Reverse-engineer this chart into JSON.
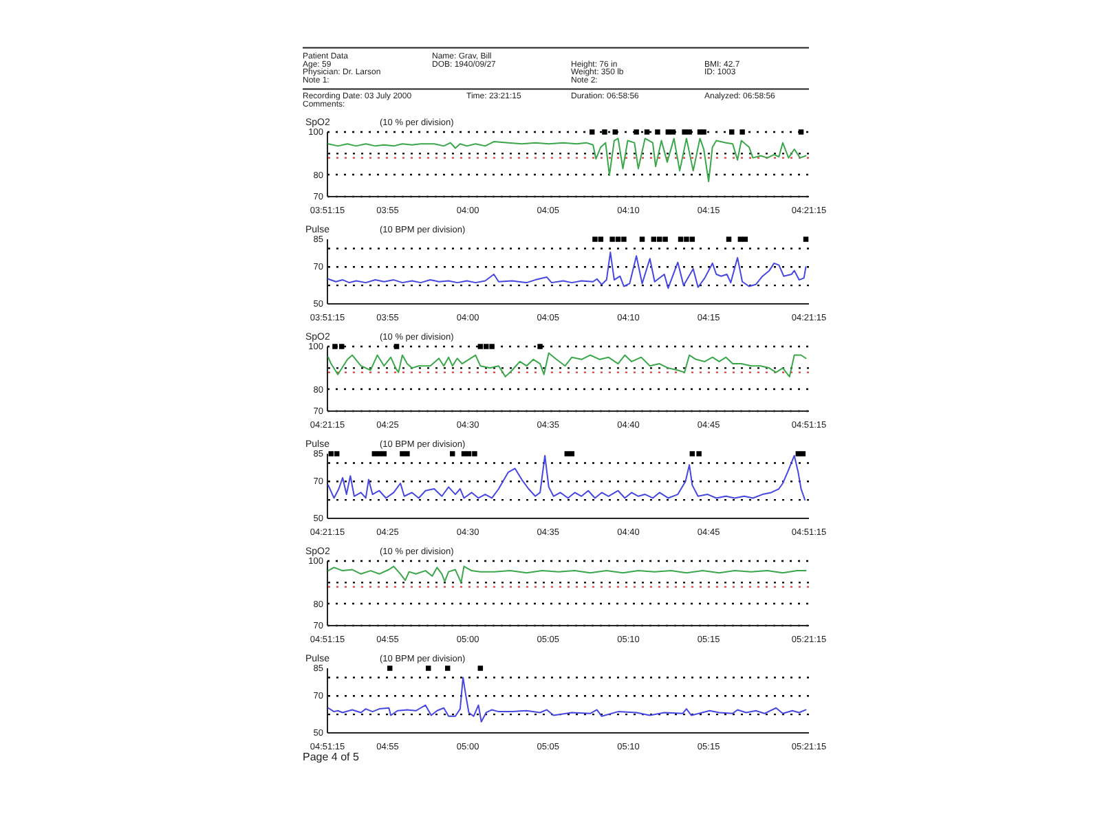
{
  "chart_data": [
    {
      "type": "other",
      "annotations": [
        "Patient Data",
        "Name: Grav, Bill",
        "Age: 59",
        "DOB: 1940/09/27",
        "Height: 76 in",
        "BMI: 42.7",
        "Physician: Dr. Larson",
        "Weight: 350 lb",
        "ID: 1003",
        "Note 1:",
        "Note 2:",
        "Recording Date: 03 July 2000",
        "Time: 23:21:15",
        "Duration: 06:58:56",
        "Analyzed: 06:58:56",
        "Comments:"
      ]
    },
    {
      "type": "line",
      "ylabel": "SpO2",
      "subtitle": "(10 % per division)",
      "xlim": [
        3.8542,
        4.3542
      ],
      "ylim": [
        70,
        100
      ],
      "grid": "y",
      "xticks": [
        {
          "value": 3.8542,
          "label": "03:51:15"
        },
        {
          "value": 3.9167,
          "label": "03:55"
        },
        {
          "value": 4,
          "label": "04:00"
        },
        {
          "value": 4.0833,
          "label": "04:05"
        },
        {
          "value": 4.1667,
          "label": "04:10"
        },
        {
          "value": 4.25,
          "label": "04:15"
        },
        {
          "value": 4.3542,
          "label": "04:21:15"
        }
      ],
      "yticks": [
        100,
        80,
        70
      ],
      "ref_lines": [
        {
          "axis": "y",
          "value": 90,
          "color": "#000000",
          "line_style": "dotted"
        },
        {
          "axis": "y",
          "value": 88,
          "color": "#e23b3b",
          "line_style": "dotted"
        }
      ],
      "series": [
        {
          "color": "#3aa64a",
          "x": [
            3.855,
            3.865,
            3.875,
            3.884,
            3.894,
            3.904,
            3.913,
            3.923,
            3.932,
            3.942,
            3.951,
            3.965,
            3.975,
            3.982,
            3.987,
            3.992,
            3.999,
            4.008,
            4.018,
            4.027,
            4.042,
            4.056,
            4.07,
            4.084,
            4.099,
            4.113,
            4.123,
            4.13,
            4.133,
            4.138,
            4.143,
            4.147,
            4.152,
            4.156,
            4.161,
            4.166,
            4.173,
            4.177,
            4.184,
            4.192,
            4.195,
            4.201,
            4.207,
            4.214,
            4.22,
            4.227,
            4.234,
            4.241,
            4.245,
            4.25,
            4.254,
            4.258,
            4.268,
            4.275,
            4.28,
            4.284,
            4.292,
            4.296,
            4.304,
            4.311,
            4.318,
            4.323,
            4.327,
            4.333,
            4.339,
            4.345,
            4.351
          ],
          "values": [
            94.5,
            93.5,
            94.5,
            93.5,
            94.5,
            93.5,
            94,
            93.5,
            94.5,
            94,
            94.5,
            94.5,
            93.5,
            95,
            92.5,
            94.5,
            93.5,
            94.5,
            93.5,
            95.5,
            95,
            94.5,
            95,
            94.5,
            95,
            94.5,
            95,
            94,
            87.5,
            93,
            95,
            80,
            96,
            97,
            83,
            96,
            95,
            83,
            97,
            95,
            84,
            96,
            86,
            97,
            82,
            97,
            82,
            97,
            92,
            77,
            93,
            96,
            95,
            94.5,
            87,
            96,
            93,
            88,
            89,
            88,
            89.5,
            88.5,
            95,
            88,
            92,
            88,
            89
          ]
        },
        {
          "type": "scatter",
          "marker": "square",
          "color": "#000000",
          "x": [
            4.129,
            4.142,
            4.153,
            4.175,
            4.186,
            4.197,
            4.208,
            4.213,
            4.225,
            4.23,
            4.241,
            4.245,
            4.274,
            4.285,
            4.346
          ],
          "values": [
            100,
            100,
            100,
            100,
            100,
            100,
            100,
            100,
            100,
            100,
            100,
            100,
            100,
            100,
            100
          ]
        }
      ]
    },
    {
      "type": "line",
      "ylabel": "Pulse",
      "subtitle": "(10 BPM per division)",
      "xlim": [
        3.8542,
        4.3542
      ],
      "ylim": [
        50,
        85
      ],
      "xticks": [
        {
          "value": 3.8542,
          "label": "03:51:15"
        },
        {
          "value": 3.9167,
          "label": "03:55"
        },
        {
          "value": 4,
          "label": "04:00"
        },
        {
          "value": 4.0833,
          "label": "04:05"
        },
        {
          "value": 4.1667,
          "label": "04:10"
        },
        {
          "value": 4.25,
          "label": "04:15"
        },
        {
          "value": 4.3542,
          "label": "04:21:15"
        }
      ],
      "yticks": [
        85,
        70,
        50
      ],
      "ref_lines": [
        {
          "axis": "y",
          "value": 80,
          "color": "#000000",
          "line_style": "dotted"
        },
        {
          "axis": "y",
          "value": 70,
          "color": "#000000",
          "line_style": "dotted"
        },
        {
          "axis": "y",
          "value": 60,
          "color": "#000000",
          "line_style": "dotted"
        }
      ],
      "series": [
        {
          "color": "#4646e0",
          "x": [
            3.855,
            3.863,
            3.87,
            3.877,
            3.884,
            3.894,
            3.904,
            3.913,
            3.923,
            3.932,
            3.942,
            3.951,
            3.961,
            3.97,
            3.98,
            3.989,
            3.999,
            4.008,
            4.018,
            4.027,
            4.032,
            4.046,
            4.061,
            4.07,
            4.082,
            4.087,
            4.099,
            4.108,
            4.118,
            4.13,
            4.134,
            4.139,
            4.144,
            4.148,
            4.152,
            4.158,
            4.162,
            4.168,
            4.175,
            4.181,
            4.189,
            4.194,
            4.204,
            4.208,
            4.218,
            4.224,
            4.234,
            4.239,
            4.246,
            4.254,
            4.258,
            4.263,
            4.269,
            4.273,
            4.28,
            4.285,
            4.292,
            4.299,
            4.306,
            4.313,
            4.318,
            4.323,
            4.328,
            4.336,
            4.339,
            4.344,
            4.349,
            4.351
          ],
          "values": [
            63.5,
            62,
            63,
            61.5,
            62.5,
            61.5,
            63,
            62,
            63,
            61.5,
            62.5,
            61.5,
            63,
            62,
            62.5,
            61.5,
            62.5,
            61.5,
            62.5,
            66,
            62,
            62.5,
            61.5,
            63,
            64.5,
            61.5,
            62.5,
            61.5,
            62.5,
            62,
            63.5,
            60.5,
            63,
            78,
            63,
            65,
            59.5,
            61,
            76,
            61,
            74.5,
            62,
            66,
            58.5,
            72.5,
            60,
            69,
            59,
            64,
            72,
            66,
            65,
            66,
            61.5,
            75,
            62,
            59.5,
            60.5,
            65,
            68,
            72,
            71,
            65,
            66,
            68,
            63,
            64,
            70
          ]
        },
        {
          "type": "scatter",
          "marker": "square",
          "color": "#000000",
          "x": [
            4.132,
            4.138,
            4.15,
            4.156,
            4.162,
            4.181,
            4.193,
            4.199,
            4.205,
            4.221,
            4.227,
            4.233,
            4.271,
            4.283,
            4.288,
            4.351
          ],
          "values": [
            85,
            85,
            85,
            85,
            85,
            85,
            85,
            85,
            85,
            85,
            85,
            85,
            85,
            85,
            85,
            85
          ]
        }
      ]
    },
    {
      "type": "line",
      "ylabel": "SpO2",
      "subtitle": "(10 % per division)",
      "xlim": [
        4.3542,
        4.8542
      ],
      "ylim": [
        70,
        100
      ],
      "grid": "y",
      "xticks": [
        {
          "value": 4.3542,
          "label": "04:21:15"
        },
        {
          "value": 4.4167,
          "label": "04:25"
        },
        {
          "value": 4.5,
          "label": "04:30"
        },
        {
          "value": 4.5833,
          "label": "04:35"
        },
        {
          "value": 4.6667,
          "label": "04:40"
        },
        {
          "value": 4.75,
          "label": "04:45"
        },
        {
          "value": 4.8542,
          "label": "04:51:15"
        }
      ],
      "yticks": [
        100,
        80,
        70
      ],
      "ref_lines": [
        {
          "axis": "y",
          "value": 90,
          "color": "#000000",
          "line_style": "dotted"
        },
        {
          "axis": "y",
          "value": 88,
          "color": "#e23b3b",
          "line_style": "dotted"
        }
      ],
      "series": [
        {
          "color": "#3aa64a",
          "x": [
            4.355,
            4.358,
            4.365,
            4.375,
            4.38,
            4.389,
            4.399,
            4.406,
            4.413,
            4.42,
            4.425,
            4.428,
            4.432,
            4.437,
            4.442,
            4.449,
            4.461,
            4.47,
            4.475,
            4.48,
            4.484,
            4.489,
            4.494,
            4.501,
            4.508,
            4.513,
            4.523,
            4.532,
            4.539,
            4.546,
            4.554,
            4.561,
            4.568,
            4.575,
            4.579,
            4.584,
            4.592,
            4.601,
            4.608,
            4.618,
            4.627,
            4.637,
            4.646,
            4.656,
            4.663,
            4.67,
            4.68,
            4.689,
            4.699,
            4.708,
            4.718,
            4.725,
            4.73,
            4.737,
            4.746,
            4.754,
            4.761,
            4.768,
            4.775,
            4.784,
            4.794,
            4.804,
            4.813,
            4.82,
            4.827,
            4.834,
            4.839,
            4.846,
            4.851
          ],
          "values": [
            95,
            92,
            87,
            94,
            96,
            91,
            89,
            96,
            91,
            95,
            90,
            88,
            96,
            92,
            90,
            91,
            91,
            94.5,
            91,
            95,
            91,
            94.5,
            92,
            94,
            96,
            91,
            90,
            91,
            86,
            89,
            93,
            91,
            94,
            92,
            87,
            97,
            94,
            91,
            95,
            94,
            96,
            94,
            95,
            92,
            96,
            93,
            95,
            91,
            92,
            90,
            89,
            88,
            96,
            94,
            93,
            95,
            93,
            95,
            92,
            92,
            91,
            91,
            90,
            88,
            90,
            86,
            96,
            96,
            94.5
          ]
        },
        {
          "type": "scatter",
          "marker": "square",
          "color": "#000000",
          "x": [
            4.362,
            4.369,
            4.426,
            4.513,
            4.519,
            4.525,
            4.575
          ],
          "values": [
            100,
            100,
            100,
            100,
            100,
            100,
            100
          ]
        }
      ]
    },
    {
      "type": "line",
      "ylabel": "Pulse",
      "subtitle": "(10 BPM per division)",
      "xlim": [
        4.3542,
        4.8542
      ],
      "ylim": [
        50,
        85
      ],
      "xticks": [
        {
          "value": 4.3542,
          "label": "04:21:15"
        },
        {
          "value": 4.4167,
          "label": "04:25"
        },
        {
          "value": 4.5,
          "label": "04:30"
        },
        {
          "value": 4.5833,
          "label": "04:35"
        },
        {
          "value": 4.6667,
          "label": "04:40"
        },
        {
          "value": 4.75,
          "label": "04:45"
        },
        {
          "value": 4.8542,
          "label": "04:51:15"
        }
      ],
      "yticks": [
        85,
        70,
        50
      ],
      "ref_lines": [
        {
          "axis": "y",
          "value": 80,
          "color": "#000000",
          "line_style": "dotted"
        },
        {
          "axis": "y",
          "value": 70,
          "color": "#000000",
          "line_style": "dotted"
        },
        {
          "axis": "y",
          "value": 60,
          "color": "#000000",
          "line_style": "dotted"
        }
      ],
      "series": [
        {
          "color": "#4646e0",
          "x": [
            4.355,
            4.361,
            4.366,
            4.37,
            4.374,
            4.378,
            4.382,
            4.389,
            4.394,
            4.397,
            4.401,
            4.408,
            4.415,
            4.423,
            4.43,
            4.434,
            4.442,
            4.449,
            4.456,
            4.465,
            4.473,
            4.48,
            4.487,
            4.492,
            4.496,
            4.504,
            4.511,
            4.518,
            4.525,
            4.532,
            4.542,
            4.549,
            4.556,
            4.563,
            4.57,
            4.575,
            4.58,
            4.584,
            4.589,
            4.596,
            4.604,
            4.611,
            4.618,
            4.625,
            4.632,
            4.639,
            4.646,
            4.656,
            4.663,
            4.67,
            4.677,
            4.684,
            4.692,
            4.699,
            4.708,
            4.718,
            4.726,
            4.73,
            4.733,
            4.739,
            4.749,
            4.758,
            4.768,
            4.777,
            4.787,
            4.796,
            4.806,
            4.815,
            4.823,
            4.827,
            4.832,
            4.839,
            4.843,
            4.846,
            4.85
          ],
          "values": [
            68,
            61,
            66,
            72,
            63,
            73,
            62,
            64,
            61,
            71,
            63,
            65,
            61,
            64,
            69,
            62,
            64,
            61,
            65,
            66,
            62,
            67,
            63,
            66,
            61,
            64,
            61,
            63,
            61,
            66,
            75,
            77,
            71,
            66,
            62,
            64,
            84,
            67,
            62,
            64,
            61,
            64,
            62,
            65,
            61,
            64,
            62,
            65,
            61,
            64,
            62,
            63,
            61,
            64,
            61,
            63,
            70,
            79,
            68,
            62,
            63,
            61,
            62,
            61,
            62,
            61,
            63,
            64,
            66,
            69,
            75,
            84,
            75,
            66,
            60
          ]
        },
        {
          "type": "scatter",
          "marker": "square",
          "color": "#000000",
          "x": [
            4.358,
            4.364,
            4.403,
            4.408,
            4.413,
            4.432,
            4.437,
            4.484,
            4.496,
            4.501,
            4.507,
            4.603,
            4.608,
            4.733,
            4.74,
            4.843,
            4.848
          ],
          "values": [
            85,
            85,
            85,
            85,
            85,
            85,
            85,
            85,
            85,
            85,
            85,
            85,
            85,
            85,
            85,
            85,
            85
          ]
        }
      ]
    },
    {
      "type": "line",
      "ylabel": "SpO2",
      "subtitle": "(10 % per division)",
      "xlim": [
        4.8542,
        5.3542
      ],
      "ylim": [
        70,
        100
      ],
      "grid": "y",
      "xticks": [
        {
          "value": 4.8542,
          "label": "04:51:15"
        },
        {
          "value": 4.9167,
          "label": "04:55"
        },
        {
          "value": 5,
          "label": "05:00"
        },
        {
          "value": 5.0833,
          "label": "05:05"
        },
        {
          "value": 5.1667,
          "label": "05:10"
        },
        {
          "value": 5.25,
          "label": "05:15"
        },
        {
          "value": 5.3542,
          "label": "05:21:15"
        }
      ],
      "yticks": [
        100,
        80,
        70
      ],
      "ref_lines": [
        {
          "axis": "y",
          "value": 90,
          "color": "#000000",
          "line_style": "dotted"
        },
        {
          "axis": "y",
          "value": 88,
          "color": "#e23b3b",
          "line_style": "dotted"
        }
      ],
      "series": [
        {
          "color": "#3aa64a",
          "x": [
            4.855,
            4.861,
            4.87,
            4.88,
            4.889,
            4.899,
            4.908,
            4.918,
            4.923,
            4.93,
            4.935,
            4.939,
            4.946,
            4.956,
            4.963,
            4.968,
            4.973,
            4.976,
            4.98,
            4.987,
            4.993,
            4.996,
            5.004,
            5.013,
            5.027,
            5.044,
            5.061,
            5.077,
            5.094,
            5.111,
            5.127,
            5.144,
            5.161,
            5.177,
            5.194,
            5.211,
            5.227,
            5.244,
            5.261,
            5.277,
            5.294,
            5.311,
            5.327,
            5.342,
            5.351
          ],
          "values": [
            95.5,
            97,
            95.5,
            96,
            94,
            95.5,
            94,
            96,
            97.5,
            94,
            91,
            95,
            94,
            95.5,
            93,
            97,
            94,
            90.5,
            95,
            96,
            90,
            97.5,
            95.5,
            95,
            95,
            95.5,
            94.5,
            95.5,
            95,
            95.5,
            94.5,
            95.5,
            94.5,
            95.5,
            95,
            95.5,
            94.5,
            95.5,
            94.5,
            95.5,
            95,
            95.5,
            94.5,
            95.5,
            95.5
          ]
        }
      ]
    },
    {
      "type": "line",
      "ylabel": "Pulse",
      "subtitle": "(10 BPM per division)",
      "xlim": [
        4.8542,
        5.3542
      ],
      "ylim": [
        50,
        85
      ],
      "xticks": [
        {
          "value": 4.8542,
          "label": "04:51:15"
        },
        {
          "value": 4.9167,
          "label": "04:55"
        },
        {
          "value": 5,
          "label": "05:00"
        },
        {
          "value": 5.0833,
          "label": "05:05"
        },
        {
          "value": 5.1667,
          "label": "05:10"
        },
        {
          "value": 5.25,
          "label": "05:15"
        },
        {
          "value": 5.3542,
          "label": "05:21:15"
        }
      ],
      "yticks": [
        85,
        70,
        50
      ],
      "ref_lines": [
        {
          "axis": "y",
          "value": 80,
          "color": "#000000",
          "line_style": "dotted"
        },
        {
          "axis": "y",
          "value": 70,
          "color": "#000000",
          "line_style": "dotted"
        },
        {
          "axis": "y",
          "value": 60,
          "color": "#000000",
          "line_style": "dotted"
        }
      ],
      "series": [
        {
          "color": "#4646e0",
          "x": [
            4.855,
            4.861,
            4.865,
            4.87,
            4.88,
            4.889,
            4.894,
            4.901,
            4.908,
            4.918,
            4.92,
            4.927,
            4.937,
            4.946,
            4.951,
            4.956,
            4.962,
            4.968,
            4.975,
            4.98,
            4.987,
            4.992,
            4.995,
            4.998,
            5.001,
            5.006,
            5.011,
            5.014,
            5.019,
            5.025,
            5.032,
            5.046,
            5.061,
            5.075,
            5.082,
            5.089,
            5.108,
            5.127,
            5.134,
            5.139,
            5.156,
            5.175,
            5.189,
            5.204,
            5.223,
            5.227,
            5.232,
            5.251,
            5.261,
            5.275,
            5.28,
            5.289,
            5.299,
            5.308,
            5.32,
            5.327,
            5.337,
            5.344,
            5.351
          ],
          "values": [
            63.5,
            61.5,
            62,
            61,
            62.5,
            61,
            63,
            61.5,
            63,
            63.5,
            59.5,
            62,
            62.5,
            62,
            63.5,
            65,
            59.5,
            62,
            63.5,
            59,
            59,
            63,
            80,
            70,
            61,
            59,
            65,
            56,
            61,
            62.5,
            61.5,
            61.5,
            62,
            61,
            62.5,
            59.5,
            61,
            60.5,
            62.5,
            59,
            61.5,
            61,
            59.5,
            61,
            60.5,
            63,
            59.5,
            62,
            61,
            60.5,
            62.5,
            61,
            62,
            60.5,
            63.5,
            60.5,
            62,
            61,
            62.5
          ]
        },
        {
          "type": "scatter",
          "marker": "square",
          "color": "#000000",
          "x": [
            4.919,
            4.959,
            4.979,
            5.013
          ],
          "values": [
            85,
            85,
            85,
            85
          ]
        }
      ],
      "annotations": [
        "Page 4 of 5"
      ]
    }
  ]
}
